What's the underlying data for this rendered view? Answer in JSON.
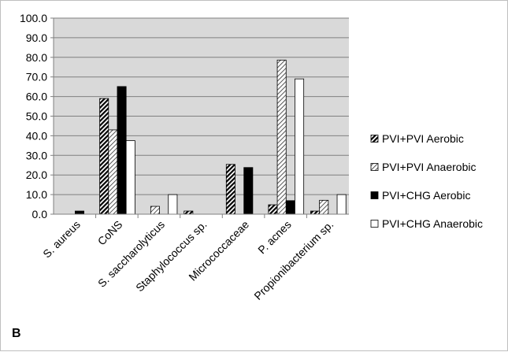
{
  "panel_label": "B",
  "chart_data": {
    "type": "bar",
    "title": "",
    "xlabel": "",
    "ylabel": "",
    "ylim": [
      0,
      100
    ],
    "ytick_step": 10,
    "ytick_labels": [
      "0.0",
      "10.0",
      "20.0",
      "30.0",
      "40.0",
      "50.0",
      "60.0",
      "70.0",
      "80.0",
      "90.0",
      "100.0"
    ],
    "grid": "horizontal",
    "legend_position": "right",
    "categories": [
      "S. aureus",
      "CoNS",
      "S. saccharolyticus",
      "Staphylococcus sp.",
      "Micrococcaceae",
      "P. acnes",
      "Propionibacterium sp."
    ],
    "series": [
      {
        "name": "PVI+PVI Aerobic",
        "pattern": "dense-diagonal",
        "values": [
          0.0,
          59.0,
          0.0,
          1.6,
          25.4,
          4.8,
          1.6
        ]
      },
      {
        "name": "PVI+PVI Anaerobic",
        "pattern": "light-diagonal",
        "values": [
          0.0,
          43.0,
          4.0,
          0.0,
          0.0,
          78.6,
          7.1
        ]
      },
      {
        "name": "PVI+CHG Aerobic",
        "pattern": "solid-black",
        "values": [
          1.6,
          65.1,
          0.0,
          0.0,
          23.8,
          6.9,
          0.0
        ]
      },
      {
        "name": "PVI+CHG Anaerobic",
        "pattern": "white",
        "values": [
          0.0,
          37.5,
          10.0,
          0.0,
          0.0,
          69.0,
          10.0
        ]
      }
    ],
    "colors": {
      "plot_background": "#d9d9d9",
      "gridline": "#808080",
      "bar_edge": "#000000",
      "bar_fill": "#000000",
      "white_fill": "#ffffff"
    }
  }
}
